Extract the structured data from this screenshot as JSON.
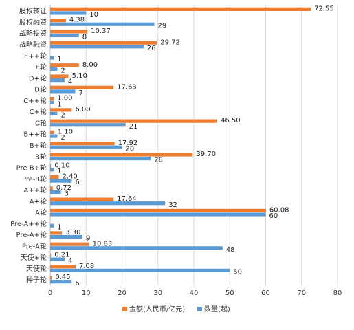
{
  "chart_data": {
    "type": "bar",
    "orientation": "horizontal",
    "categories": [
      "股权转让",
      "股权融资",
      "战略投资",
      "战略融资",
      "E++轮",
      "E轮",
      "D+轮",
      "D轮",
      "C++轮",
      "C+轮",
      "C轮",
      "B++轮",
      "B+轮",
      "B轮",
      "Pre-B+轮",
      "Pre-B轮",
      "A++轮",
      "A+轮",
      "A轮",
      "Pre-A++轮",
      "Pre-A+轮",
      "Pre-A轮",
      "天使+轮",
      "天使轮",
      "种子轮"
    ],
    "category_labels": [
      "股权转让",
      "股权融资",
      "战略投资",
      "战略融资",
      "E++轮",
      "E轮",
      "D+轮",
      "D轮",
      "C++轮",
      "C+轮",
      "C轮",
      "B++轮",
      "B+轮",
      "B轮",
      "Pre-B+轮",
      "Pre-B轮",
      "A++轮",
      "A+轮",
      "A轮",
      "Pre-A++轮",
      "Pre-A+轮",
      "Pre-A轮",
      "天使+轮",
      "天使轮",
      "种子轮"
    ],
    "series": [
      {
        "name": "金额(人民币/亿元)",
        "color": "#ED7D31",
        "values": [
          72.55,
          4.38,
          10.37,
          29.72,
          null,
          8.0,
          5.1,
          17.63,
          1.0,
          6.0,
          46.5,
          1.1,
          17.92,
          39.7,
          0.1,
          2.4,
          0.72,
          17.64,
          60.08,
          null,
          3.3,
          10.83,
          0.21,
          7.08,
          0.45
        ],
        "labels": [
          "72.55",
          "4.38",
          "10.37",
          "29.72",
          "",
          "8.00",
          "5.10",
          "17.63",
          "1.00",
          "6.00",
          "46.50",
          "1.10",
          "17.92",
          "39.70",
          "0.10",
          "2.40",
          "0.72",
          "17.64",
          "60.08",
          "",
          "3.30",
          "10.83",
          "0.21",
          "7.08",
          "0.45"
        ]
      },
      {
        "name": "数量(起)",
        "color": "#5B9BD5",
        "values": [
          10,
          29,
          8,
          26,
          1,
          2,
          4,
          7,
          1,
          2,
          21,
          2,
          20,
          28,
          1,
          6,
          3,
          32,
          60,
          1,
          9,
          48,
          4,
          50,
          6
        ],
        "labels": [
          "10",
          "29",
          "8",
          "26",
          "1",
          "2",
          "4",
          "7",
          "1",
          "2",
          "21",
          "2",
          "20",
          "28",
          "1",
          "6",
          "3",
          "32",
          "60",
          "1",
          "9",
          "48",
          "4",
          "50",
          "6"
        ]
      }
    ],
    "xlim": [
      0,
      80
    ],
    "xticks": [
      0,
      10,
      20,
      30,
      40,
      50,
      60,
      70,
      80
    ],
    "xtick_labels": [
      "0",
      "10",
      "20",
      "30",
      "40",
      "50",
      "60",
      "70",
      "80"
    ],
    "title": "",
    "xlabel": "",
    "ylabel": "",
    "grid": "vertical",
    "legend": "bottom",
    "colors": {
      "grid": "#D9D9D9",
      "axis": "#BFBFBF"
    }
  }
}
